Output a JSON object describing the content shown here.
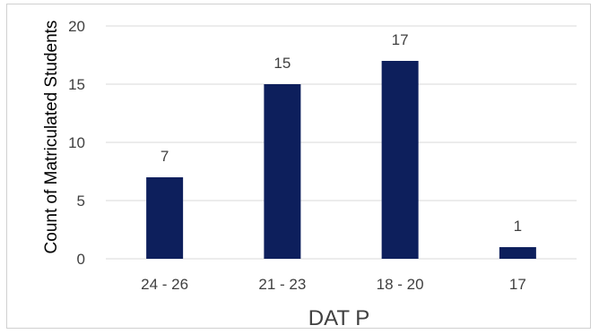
{
  "chart_data": {
    "type": "bar",
    "categories": [
      "24 - 26",
      "21 - 23",
      "18 - 20",
      "17"
    ],
    "values": [
      7,
      15,
      17,
      1
    ],
    "data_labels": [
      "7",
      "15",
      "17",
      "1"
    ],
    "title": "",
    "xlabel": "DAT P",
    "ylabel": "Count of Matriculated Students",
    "ylim": [
      0,
      20
    ],
    "yticks": [
      "0",
      "5",
      "10",
      "15",
      "20"
    ],
    "grid": true,
    "bar_color": "#0d1f5c",
    "grid_color": "#d9d9d9",
    "text_color": "#404040"
  }
}
